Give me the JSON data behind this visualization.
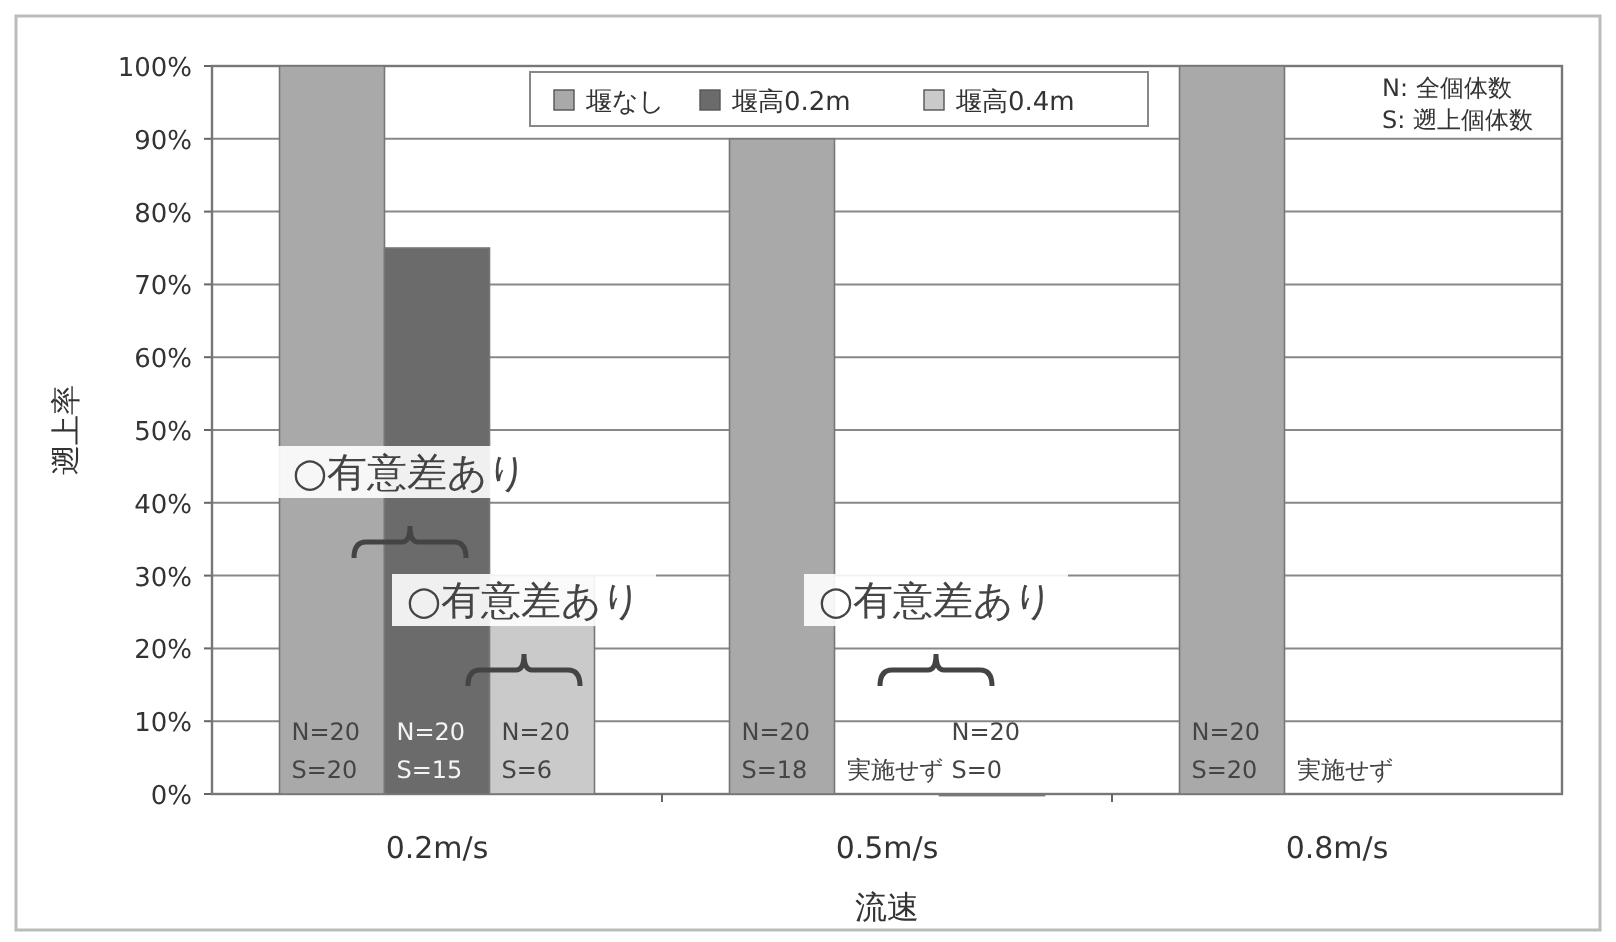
{
  "chart_data": {
    "type": "bar",
    "xlabel": "流速",
    "ylabel": "遡上率",
    "categories": [
      "0.2m/s",
      "0.5m/s",
      "0.8m/s"
    ],
    "series": [
      {
        "name": "堰なし",
        "color": "#a9a9a9",
        "values": [
          100,
          90,
          100
        ],
        "value_labels": [
          "N=20\nS=20",
          "N=20\nS=18",
          "N=20\nS=20"
        ]
      },
      {
        "name": "堰高0.2m",
        "color": "#6b6b6b",
        "values": [
          75,
          null,
          null
        ],
        "value_labels": [
          "N=20\nS=15",
          "実施せず",
          "実施せず"
        ]
      },
      {
        "name": "堰高0.4m",
        "color": "#cacaca",
        "values": [
          30,
          0,
          null
        ],
        "value_labels": [
          "N=20\nS=6",
          "N=20\nS=0",
          null
        ]
      }
    ],
    "ylim": [
      0,
      100
    ],
    "yticks": [
      {
        "value": 0,
        "label": "0%"
      },
      {
        "value": 10,
        "label": "10%"
      },
      {
        "value": 20,
        "label": "20%"
      },
      {
        "value": 30,
        "label": "30%"
      },
      {
        "value": 40,
        "label": "40%"
      },
      {
        "value": 50,
        "label": "50%"
      },
      {
        "value": 60,
        "label": "60%"
      },
      {
        "value": 70,
        "label": "70%"
      },
      {
        "value": 80,
        "label": "80%"
      },
      {
        "value": 90,
        "label": "90%"
      },
      {
        "value": 100,
        "label": "100%"
      }
    ],
    "grid": "y",
    "legend": "top",
    "annotations": [
      "○有意差あり",
      "○有意差あり",
      "○有意差あり",
      "N: 全個体数",
      "S: 遡上個体数"
    ]
  }
}
